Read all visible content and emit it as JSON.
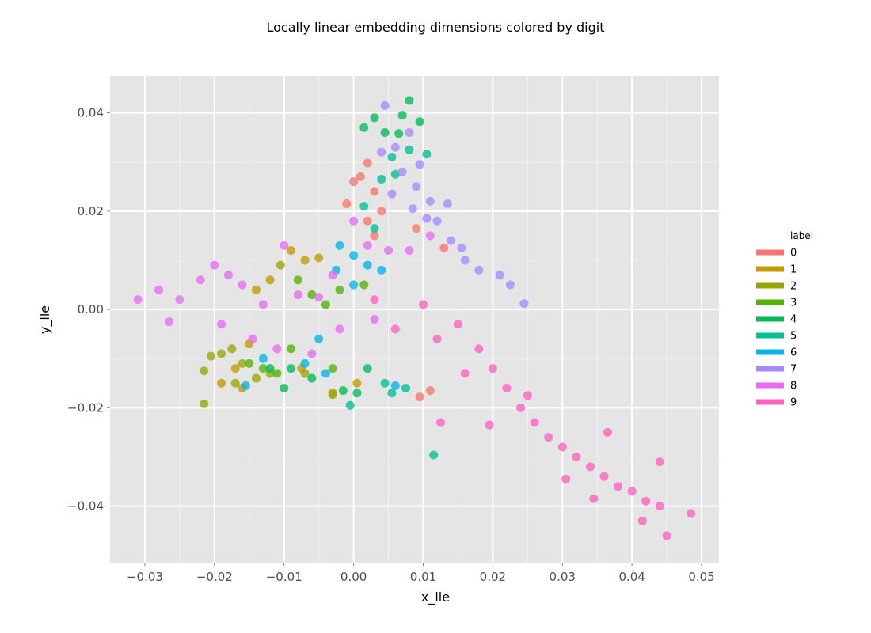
{
  "chart_data": {
    "type": "scatter",
    "title": "Locally linear embedding dimensions colored by digit",
    "xlabel": "x_lle",
    "ylabel": "y_lle",
    "xlim": [
      -0.035,
      0.0525
    ],
    "ylim": [
      -0.0515,
      0.0475
    ],
    "x_ticks": [
      -0.03,
      -0.02,
      -0.01,
      0.0,
      0.01,
      0.02,
      0.03,
      0.04,
      0.05
    ],
    "x_tick_labels": [
      "−0.03",
      "−0.02",
      "−0.01",
      "0.00",
      "0.01",
      "0.02",
      "0.03",
      "0.04",
      "0.05"
    ],
    "y_ticks": [
      0.04,
      0.02,
      0.0,
      -0.02,
      -0.04
    ],
    "y_tick_labels": [
      "0.04",
      "0.02",
      "0.00",
      "−0.02",
      "−0.04"
    ],
    "grid": true,
    "legend": {
      "title": "label",
      "placement": "right"
    },
    "series": [
      {
        "name": "0",
        "color": "#f8766d",
        "points": [
          [
            0.0,
            0.026
          ],
          [
            0.001,
            0.027
          ],
          [
            0.002,
            0.0298
          ],
          [
            -0.001,
            0.0215
          ],
          [
            0.003,
            0.024
          ],
          [
            0.004,
            0.02
          ],
          [
            0.002,
            0.018
          ],
          [
            0.009,
            0.0165
          ],
          [
            0.0095,
            -0.0178
          ],
          [
            0.011,
            -0.0165
          ],
          [
            0.003,
            0.015
          ],
          [
            0.013,
            0.0125
          ]
        ]
      },
      {
        "name": "1",
        "color": "#c49a00",
        "points": [
          [
            -0.009,
            0.012
          ],
          [
            -0.007,
            0.01
          ],
          [
            -0.012,
            0.006
          ],
          [
            -0.014,
            0.004
          ],
          [
            -0.015,
            -0.007
          ],
          [
            -0.017,
            -0.012
          ],
          [
            -0.019,
            -0.015
          ],
          [
            -0.016,
            -0.016
          ],
          [
            -0.0075,
            -0.012
          ],
          [
            0.0005,
            -0.015
          ],
          [
            -0.003,
            -0.017
          ],
          [
            -0.005,
            0.0105
          ]
        ]
      },
      {
        "name": "2",
        "color": "#99a800",
        "points": [
          [
            -0.0215,
            -0.0192
          ],
          [
            -0.0215,
            -0.0125
          ],
          [
            -0.0205,
            -0.0095
          ],
          [
            -0.017,
            -0.015
          ],
          [
            -0.014,
            -0.014
          ],
          [
            -0.012,
            -0.013
          ],
          [
            -0.019,
            -0.009
          ],
          [
            -0.016,
            -0.011
          ],
          [
            -0.007,
            -0.013
          ],
          [
            -0.003,
            -0.0173
          ],
          [
            -0.0105,
            0.009
          ],
          [
            -0.0175,
            -0.008
          ]
        ]
      },
      {
        "name": "3",
        "color": "#53b400",
        "points": [
          [
            -0.008,
            0.006
          ],
          [
            -0.006,
            0.003
          ],
          [
            -0.004,
            0.001
          ],
          [
            -0.013,
            -0.012
          ],
          [
            -0.011,
            -0.013
          ],
          [
            -0.002,
            0.004
          ],
          [
            0.0015,
            0.005
          ],
          [
            -0.009,
            -0.008
          ],
          [
            -0.015,
            -0.011
          ],
          [
            -0.003,
            -0.012
          ]
        ]
      },
      {
        "name": "4",
        "color": "#00bc56",
        "points": [
          [
            0.0015,
            0.037
          ],
          [
            0.003,
            0.039
          ],
          [
            0.0045,
            0.036
          ],
          [
            0.007,
            0.0395
          ],
          [
            0.008,
            0.0425
          ],
          [
            0.0095,
            0.0382
          ],
          [
            0.0065,
            0.0358
          ],
          [
            -0.01,
            -0.016
          ],
          [
            -0.009,
            -0.012
          ],
          [
            -0.012,
            -0.012
          ],
          [
            -0.006,
            -0.014
          ],
          [
            0.0005,
            -0.017
          ],
          [
            0.002,
            -0.012
          ],
          [
            -0.0015,
            -0.0165
          ]
        ]
      },
      {
        "name": "5",
        "color": "#00c094",
        "points": [
          [
            0.0055,
            0.031
          ],
          [
            0.008,
            0.0325
          ],
          [
            0.006,
            0.0275
          ],
          [
            0.004,
            0.0265
          ],
          [
            0.0105,
            0.0316
          ],
          [
            0.0115,
            -0.0296
          ],
          [
            0.0055,
            -0.017
          ],
          [
            0.0045,
            -0.015
          ],
          [
            -0.0005,
            -0.0195
          ],
          [
            0.0075,
            -0.016
          ],
          [
            0.0015,
            0.021
          ],
          [
            0.003,
            0.0165
          ]
        ]
      },
      {
        "name": "6",
        "color": "#00b6eb",
        "points": [
          [
            -0.002,
            0.013
          ],
          [
            0.0,
            0.011
          ],
          [
            0.002,
            0.009
          ],
          [
            0.0,
            0.005
          ],
          [
            -0.005,
            -0.006
          ],
          [
            -0.007,
            -0.011
          ],
          [
            -0.013,
            -0.01
          ],
          [
            -0.0155,
            -0.0155
          ],
          [
            -0.004,
            -0.013
          ],
          [
            0.006,
            -0.0155
          ],
          [
            0.004,
            0.008
          ],
          [
            -0.0025,
            0.008
          ]
        ]
      },
      {
        "name": "7",
        "color": "#a58aff",
        "points": [
          [
            0.0045,
            0.0415
          ],
          [
            0.008,
            0.036
          ],
          [
            0.006,
            0.033
          ],
          [
            0.007,
            0.028
          ],
          [
            0.009,
            0.025
          ],
          [
            0.011,
            0.022
          ],
          [
            0.012,
            0.018
          ],
          [
            0.014,
            0.014
          ],
          [
            0.016,
            0.01
          ],
          [
            0.018,
            0.008
          ],
          [
            0.021,
            0.007
          ],
          [
            0.0225,
            0.005
          ],
          [
            0.0245,
            0.0012
          ],
          [
            0.004,
            0.032
          ],
          [
            0.0095,
            0.0295
          ],
          [
            0.0105,
            0.0185
          ],
          [
            0.0155,
            0.0125
          ],
          [
            0.0135,
            0.0215
          ],
          [
            0.0085,
            0.0205
          ],
          [
            0.0055,
            0.0235
          ]
        ]
      },
      {
        "name": "8",
        "color": "#e76bf3",
        "points": [
          [
            -0.031,
            0.002
          ],
          [
            -0.028,
            0.004
          ],
          [
            -0.0265,
            -0.0025
          ],
          [
            -0.025,
            0.002
          ],
          [
            -0.022,
            0.006
          ],
          [
            -0.02,
            0.009
          ],
          [
            -0.018,
            0.007
          ],
          [
            -0.016,
            0.005
          ],
          [
            -0.013,
            0.001
          ],
          [
            -0.01,
            0.013
          ],
          [
            -0.008,
            0.003
          ],
          [
            -0.005,
            0.0025
          ],
          [
            -0.003,
            0.007
          ],
          [
            0.0,
            0.018
          ],
          [
            0.002,
            0.013
          ],
          [
            0.005,
            0.012
          ],
          [
            -0.002,
            -0.004
          ],
          [
            -0.011,
            -0.008
          ],
          [
            0.008,
            0.012
          ],
          [
            0.011,
            0.015
          ],
          [
            -0.019,
            -0.003
          ],
          [
            -0.0145,
            -0.006
          ],
          [
            -0.006,
            -0.009
          ],
          [
            0.003,
            -0.002
          ]
        ]
      },
      {
        "name": "9",
        "color": "#ff62bc",
        "points": [
          [
            0.003,
            0.002
          ],
          [
            0.006,
            -0.004
          ],
          [
            0.01,
            0.001
          ],
          [
            0.012,
            -0.006
          ],
          [
            0.015,
            -0.003
          ],
          [
            0.018,
            -0.008
          ],
          [
            0.02,
            -0.012
          ],
          [
            0.022,
            -0.016
          ],
          [
            0.024,
            -0.02
          ],
          [
            0.026,
            -0.023
          ],
          [
            0.028,
            -0.026
          ],
          [
            0.03,
            -0.028
          ],
          [
            0.032,
            -0.03
          ],
          [
            0.034,
            -0.032
          ],
          [
            0.036,
            -0.034
          ],
          [
            0.038,
            -0.036
          ],
          [
            0.04,
            -0.037
          ],
          [
            0.042,
            -0.039
          ],
          [
            0.044,
            -0.04
          ],
          [
            0.0485,
            -0.0415
          ],
          [
            0.045,
            -0.046
          ],
          [
            0.044,
            -0.031
          ],
          [
            0.0365,
            -0.025
          ],
          [
            0.0305,
            -0.0345
          ],
          [
            0.0125,
            -0.023
          ],
          [
            0.0345,
            -0.0385
          ],
          [
            0.0415,
            -0.043
          ],
          [
            0.0195,
            -0.0235
          ],
          [
            0.025,
            -0.0175
          ],
          [
            0.016,
            -0.013
          ]
        ]
      }
    ]
  }
}
